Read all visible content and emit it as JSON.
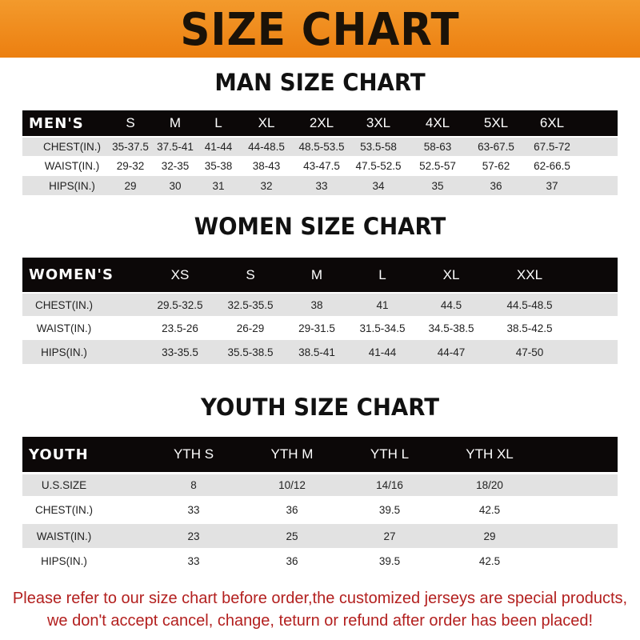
{
  "banner": {
    "title": "SIZE CHART",
    "color": "#ee8a1a"
  },
  "men": {
    "title": "MAN SIZE CHART",
    "header": [
      "MEN'S",
      "S",
      "M",
      "L",
      "XL",
      "2XL",
      "3XL",
      "4XL",
      "5XL",
      "6XL"
    ],
    "rows": [
      [
        "CHEST(IN.)",
        "35-37.5",
        "37.5-41",
        "41-44",
        "44-48.5",
        "48.5-53.5",
        "53.5-58",
        "58-63",
        "63-67.5",
        "67.5-72"
      ],
      [
        "WAIST(IN.)",
        "29-32",
        "32-35",
        "35-38",
        "38-43",
        "43-47.5",
        "47.5-52.5",
        "52.5-57",
        "57-62",
        "62-66.5"
      ],
      [
        "HIPS(IN.)",
        "29",
        "30",
        "31",
        "32",
        "33",
        "34",
        "35",
        "36",
        "37"
      ]
    ]
  },
  "women": {
    "title": "WOMEN SIZE CHART",
    "header": [
      "WOMEN'S",
      "XS",
      "S",
      "M",
      "L",
      "XL",
      "XXL"
    ],
    "rows": [
      [
        "CHEST(IN.)",
        "29.5-32.5",
        "32.5-35.5",
        "38",
        "41",
        "44.5",
        "44.5-48.5"
      ],
      [
        "WAIST(IN.)",
        "23.5-26",
        "26-29",
        "29-31.5",
        "31.5-34.5",
        "34.5-38.5",
        "38.5-42.5"
      ],
      [
        "HIPS(IN.)",
        "33-35.5",
        "35.5-38.5",
        "38.5-41",
        "41-44",
        "44-47",
        "47-50"
      ]
    ]
  },
  "youth": {
    "title": "YOUTH SIZE CHART",
    "header": [
      "YOUTH",
      "YTH S",
      "YTH M",
      "YTH L",
      "YTH XL"
    ],
    "rows": [
      [
        "U.S.SIZE",
        "8",
        "10/12",
        "14/16",
        "18/20"
      ],
      [
        "CHEST(IN.)",
        "33",
        "36",
        "39.5",
        "42.5"
      ],
      [
        "WAIST(IN.)",
        "23",
        "25",
        "27",
        "29"
      ],
      [
        "HIPS(IN.)",
        "33",
        "36",
        "39.5",
        "42.5"
      ]
    ]
  },
  "notice": {
    "line1": "Please refer to our size chart before order,the customized jerseys are special products,",
    "line2": "we don't accept cancel, change, teturn or refund after order has been placed!",
    "color": "#b3201f"
  }
}
